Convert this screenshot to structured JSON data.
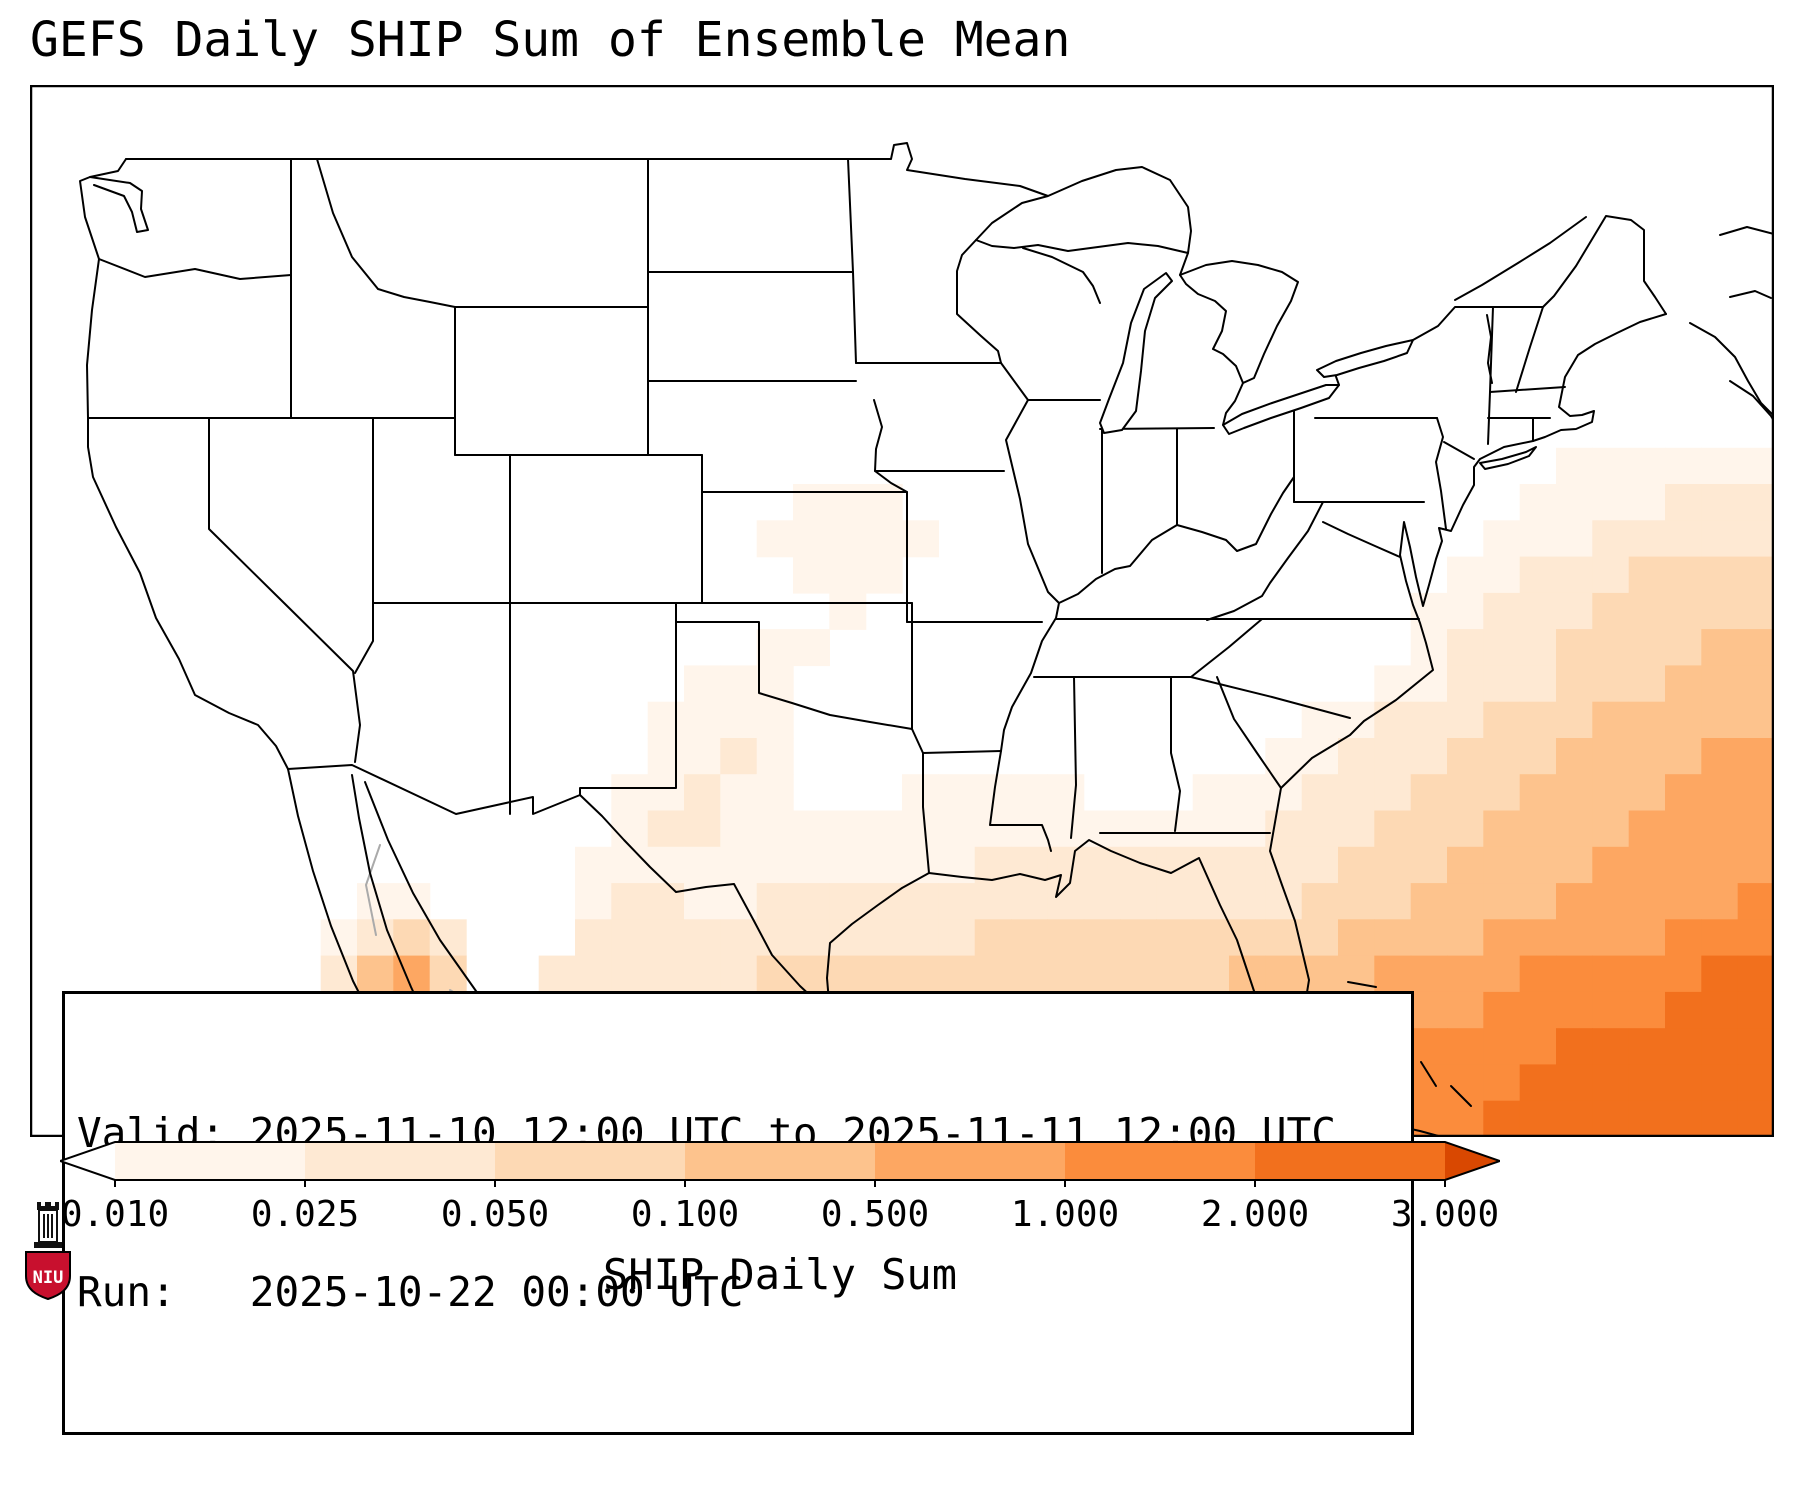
{
  "title": "GEFS Daily SHIP Sum of Ensemble Mean",
  "info_box": {
    "line1": "Valid: 2025-11-10 12:00 UTC to 2025-11-11 12:00 UTC",
    "line2": "Run:   2025-10-22 00:00 UTC"
  },
  "colorbar": {
    "label": "SHIP Daily Sum",
    "ticks": [
      "0.010",
      "0.025",
      "0.050",
      "0.100",
      "0.500",
      "1.000",
      "2.000",
      "3.000"
    ],
    "under_color": "#ffffff",
    "over_color": "#d94801",
    "outline_color": "#000000",
    "segment_colors": [
      "#fff5eb",
      "#fee9d3",
      "#fdd9b4",
      "#fdc38d",
      "#fda762",
      "#fb8c3c",
      "#f2701d"
    ]
  },
  "logo": {
    "text": "NIU",
    "shield_color": "#c8102e"
  },
  "map": {
    "background": "#ffffff",
    "line_color": "#000000",
    "foreign_line_color": "#aaaaaa",
    "shading": {
      "cols": 48,
      "rows": 29,
      "palette": {
        "1": "#fff5eb",
        "2": "#fee9d3",
        "3": "#fdd9b4",
        "4": "#fdc38d",
        "5": "#fda762",
        "6": "#fb8c3c",
        "7": "#f2701d"
      },
      "grid": [
        "000000000000000000000000000000000000000000000000",
        "000000000000000000000000000000000000000000000000",
        "000000000000000000000000000000000000000000000000",
        "000000000000000000000000000000000000000000000000",
        "000000000000000000000000000000000000000000000000",
        "000000000000000000000000000000000000000000000000",
        "000000000000000000000000000000000000000000000000",
        "000000000000000000000000000000000000000000000000",
        "000000000000000000000000000000000000000000000000",
        "000000000000000000000000000000000000000000000000",
        "000000000000000000000000000000000000000000111111",
        "000000000000000000000111000000000000000001111222",
        "000000000000000000001111100000000000000011122222",
        "000000000000000000000111000000000000000112223333",
        "000000000000000000000010000000000000001122233333",
        "000000000000000000001100000000000000001222333344",
        "000000000000000000111000000000000000011222333444",
        "000000000000000001111000000000000001122233344444",
        "000000000000000001121000000000000011222333444455",
        "000000000000000011211000111110001112223334444555",
        "000000000000000012211111111111111122233344445555",
        "000000000000000111111111112222222222333444455555",
        "000000000110000122112222222222222223334444555556",
        "000000001232000222222222223333333333444455555666",
        "000000002453002222223333333333333444455556666677",
        "000000002342002222223333333333334445555566666777",
        "000000001231002222223333334444444455556666777777",
        "000000001122212222223333334444444555566667777777",
        "000000001225652223333444444455555556666677777777"
      ]
    }
  }
}
